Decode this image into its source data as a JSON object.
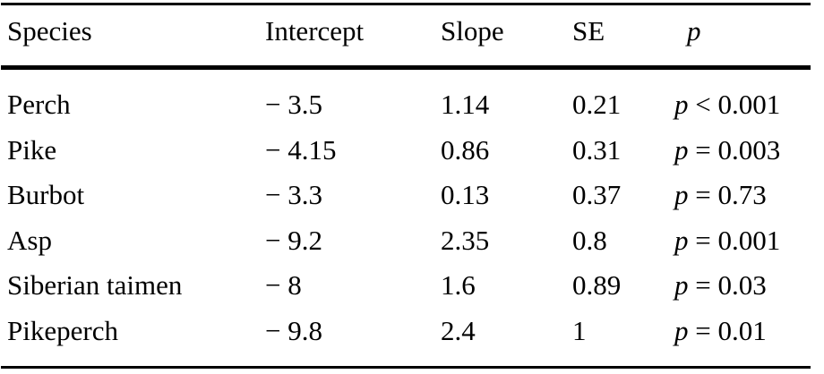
{
  "table": {
    "columns": [
      {
        "label": "Species"
      },
      {
        "label": "Intercept"
      },
      {
        "label": "Slope"
      },
      {
        "label": "SE"
      },
      {
        "label": "p"
      }
    ],
    "rows": [
      {
        "species": "Perch",
        "intercept": "− 3.5",
        "slope": "1.14",
        "se": "0.21",
        "p_sym": "p",
        "p_rest": " < 0.001"
      },
      {
        "species": "Pike",
        "intercept": "− 4.15",
        "slope": "0.86",
        "se": "0.31",
        "p_sym": "p",
        "p_rest": " = 0.003"
      },
      {
        "species": "Burbot",
        "intercept": "− 3.3",
        "slope": "0.13",
        "se": "0.37",
        "p_sym": "p",
        "p_rest": " = 0.73"
      },
      {
        "species": "Asp",
        "intercept": "− 9.2",
        "slope": "2.35",
        "se": "0.8",
        "p_sym": "p",
        "p_rest": " = 0.001"
      },
      {
        "species": "Siberian taimen",
        "intercept": "− 8",
        "slope": "1.6",
        "se": "0.89",
        "p_sym": "p",
        "p_rest": " = 0.03"
      },
      {
        "species": "Pikeperch",
        "intercept": "− 9.8",
        "slope": "2.4",
        "se": "1",
        "p_sym": "p",
        "p_rest": " = 0.01"
      }
    ]
  }
}
